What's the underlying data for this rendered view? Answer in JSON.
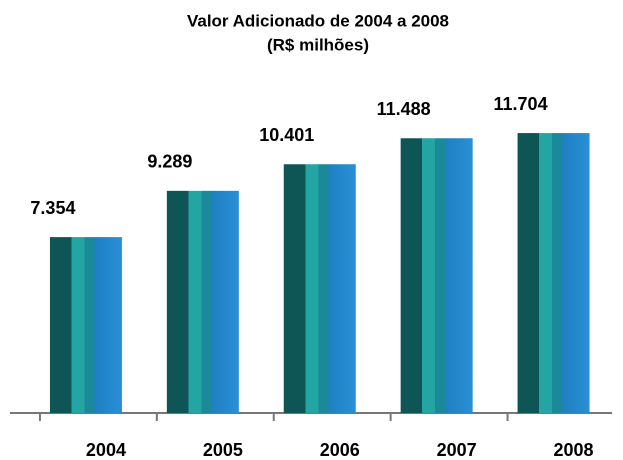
{
  "chart_data": {
    "type": "bar",
    "title": "Valor Adicionado de 2004 a 2008",
    "subtitle": "(R$ milhões)",
    "categories": [
      "2004",
      "2005",
      "2006",
      "2007",
      "2008"
    ],
    "values": [
      7354,
      9289,
      10401,
      11488,
      11704
    ],
    "value_labels": [
      "7.354",
      "9.289",
      "10.401",
      "11.488",
      "11.704"
    ],
    "color": "#1fa0a0",
    "ylim": [
      0,
      12000
    ]
  }
}
